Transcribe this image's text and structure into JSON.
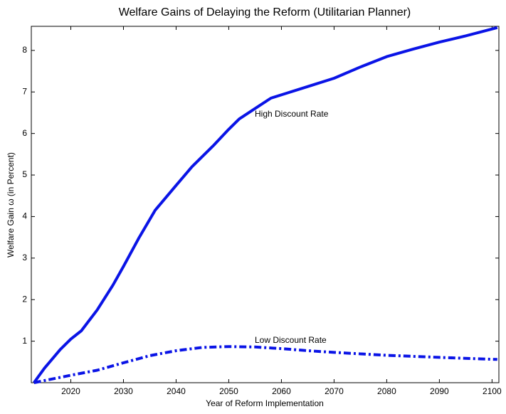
{
  "chart_data": {
    "type": "line",
    "title": "Welfare Gains of Delaying the Reform (Utilitarian Planner)",
    "x_label": "Year of Reform Implementation",
    "y_label": "Welfare Gain ω (in Percent)",
    "annotations": [
      "High Discount Rate",
      "Low Discount Rate"
    ],
    "series": [
      {
        "name": "High Discount Rate",
        "color": "#0a14e6",
        "dash": "solid",
        "x": [
          2013,
          2015,
          2018,
          2020,
          2022,
          2025,
          2028,
          2030,
          2033,
          2036,
          2040,
          2043,
          2047,
          2050,
          2052,
          2055,
          2058,
          2061,
          2065,
          2070,
          2075,
          2080,
          2085,
          2090,
          2095,
          2101
        ],
        "values": [
          0,
          0.35,
          0.8,
          1.05,
          1.25,
          1.75,
          2.35,
          2.8,
          3.5,
          4.15,
          4.75,
          5.2,
          5.7,
          6.1,
          6.35,
          6.6,
          6.85,
          6.97,
          7.13,
          7.33,
          7.6,
          7.85,
          8.03,
          8.2,
          8.35,
          8.55
        ]
      },
      {
        "name": "Low Discount Rate",
        "color": "#0a14e6",
        "dash": "dashdot",
        "x": [
          2013,
          2020,
          2025,
          2030,
          2035,
          2040,
          2045,
          2050,
          2055,
          2060,
          2065,
          2070,
          2080,
          2090,
          2101
        ],
        "values": [
          0,
          0.18,
          0.3,
          0.48,
          0.65,
          0.77,
          0.85,
          0.87,
          0.86,
          0.82,
          0.77,
          0.73,
          0.66,
          0.61,
          0.56
        ]
      }
    ],
    "xlim": [
      2012.5,
      2101.3
    ],
    "xticks": [
      2020,
      2030,
      2040,
      2050,
      2060,
      2070,
      2080,
      2090,
      2100
    ],
    "ylim": [
      0,
      8.58
    ],
    "yticks": [
      1,
      2,
      3,
      4,
      5,
      6,
      7,
      8
    ],
    "grid": false
  }
}
